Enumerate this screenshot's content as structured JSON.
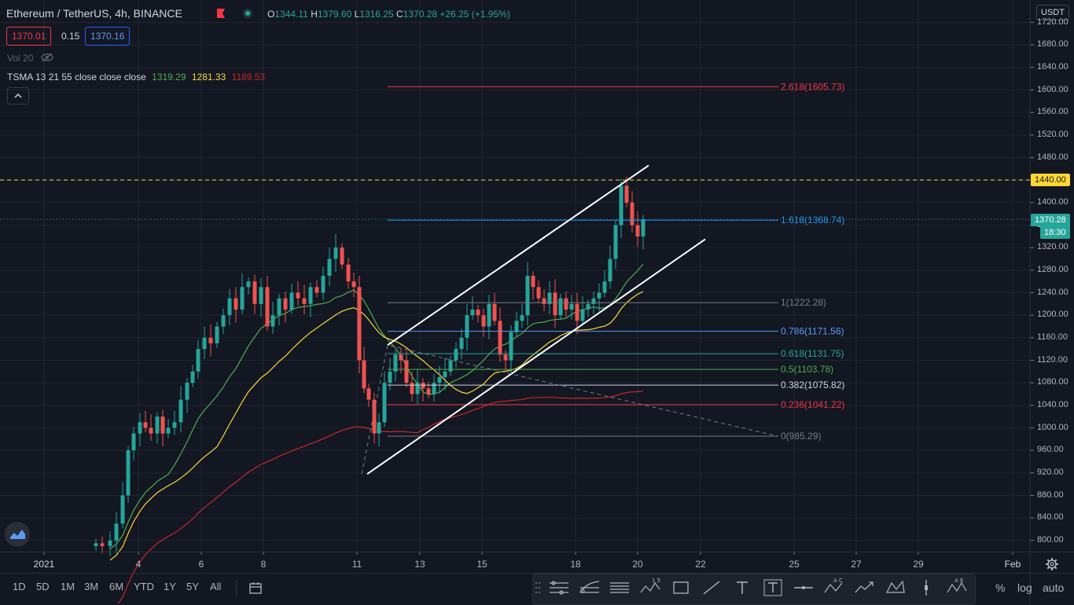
{
  "header": {
    "symbol": "Ethereum / TetherUS",
    "interval": "4h",
    "exchange": "BINANCE",
    "ohlc": {
      "o_label": "O",
      "o": "1344.11",
      "h_label": "H",
      "h": "1379.60",
      "l_label": "L",
      "l": "1316.25",
      "c_label": "C",
      "c": "1370.28",
      "change": "+26.25 (+1.95%)"
    },
    "sell_price": "1370.01",
    "spread": "0.15",
    "buy_price": "1370.16",
    "volume_label": "Vol 20",
    "tsma_label": "TSMA 13 21 55 close close close",
    "tsma_values": [
      "1319.29",
      "1281.33",
      "1189.53"
    ]
  },
  "price_scale": {
    "currency": "USDT",
    "ticks": [
      "1720.00",
      "1680.00",
      "1640.00",
      "1600.00",
      "1560.00",
      "1520.00",
      "1480.00",
      "1440.00",
      "1400.00",
      "1360.00",
      "1320.00",
      "1280.00",
      "1240.00",
      "1200.00",
      "1160.00",
      "1120.00",
      "1080.00",
      "1040.00",
      "1000.00",
      "960.00",
      "920.00",
      "880.00",
      "840.00",
      "800.00"
    ],
    "hline_label": "1440.00",
    "last_price_label": "1370.28",
    "countdown": "18:30"
  },
  "time_axis": {
    "labels": [
      "2021",
      "4",
      "6",
      "8",
      "11",
      "13",
      "15",
      "18",
      "20",
      "22",
      "25",
      "27",
      "29",
      "Feb"
    ]
  },
  "bottom_toolbar": {
    "timeframes": [
      "1D",
      "5D",
      "1M",
      "3M",
      "6M",
      "YTD",
      "1Y",
      "5Y",
      "All"
    ],
    "percent": "%",
    "log": "log",
    "auto": "auto"
  },
  "colors": {
    "background": "#131722",
    "up": "#26a69a",
    "down": "#ef5350",
    "sma13": "#4caf50",
    "sma21": "#fdd835",
    "sma55": "#c62828",
    "hline": "#fdd835",
    "last_price": "#26a69a"
  },
  "chart_data": {
    "type": "candlestick",
    "symbol": "ETH/USDT",
    "interval": "4h",
    "ylim": [
      785,
      1735
    ],
    "scale": "linear",
    "grid": true,
    "candles_approx": [
      {
        "date": "2021-01-03",
        "o": 790,
        "h": 800,
        "l": 780,
        "c": 795
      },
      {
        "date": "2021-01-04",
        "o": 800,
        "h": 1020,
        "l": 890,
        "c": 1010
      },
      {
        "date": "2021-01-05",
        "o": 1010,
        "h": 1160,
        "l": 920,
        "c": 1060
      },
      {
        "date": "2021-01-06",
        "o": 1060,
        "h": 1210,
        "l": 1080,
        "c": 1200
      },
      {
        "date": "2021-01-07",
        "o": 1200,
        "h": 1275,
        "l": 1170,
        "c": 1230
      },
      {
        "date": "2021-01-08",
        "o": 1230,
        "h": 1285,
        "l": 1130,
        "c": 1250
      },
      {
        "date": "2021-01-09",
        "o": 1250,
        "h": 1280,
        "l": 1180,
        "c": 1260
      },
      {
        "date": "2021-01-10",
        "o": 1260,
        "h": 1345,
        "l": 1200,
        "c": 1270
      },
      {
        "date": "2021-01-11",
        "o": 1270,
        "h": 1270,
        "l": 935,
        "c": 1070
      },
      {
        "date": "2021-01-12",
        "o": 1070,
        "h": 1150,
        "l": 990,
        "c": 1060
      },
      {
        "date": "2021-01-13",
        "o": 1060,
        "h": 1120,
        "l": 1020,
        "c": 1080
      },
      {
        "date": "2021-01-14",
        "o": 1080,
        "h": 1170,
        "l": 1070,
        "c": 1145
      },
      {
        "date": "2021-01-15",
        "o": 1145,
        "h": 1230,
        "l": 1120,
        "c": 1210
      },
      {
        "date": "2021-01-16",
        "o": 1210,
        "h": 1240,
        "l": 1100,
        "c": 1180
      },
      {
        "date": "2021-01-17",
        "o": 1180,
        "h": 1280,
        "l": 1170,
        "c": 1230
      },
      {
        "date": "2021-01-18",
        "o": 1230,
        "h": 1265,
        "l": 1190,
        "c": 1240
      },
      {
        "date": "2021-01-19",
        "o": 1240,
        "h": 1440,
        "l": 1220,
        "c": 1390
      },
      {
        "date": "2021-01-20",
        "o": 1390,
        "h": 1410,
        "l": 1330,
        "c": 1370.28
      }
    ],
    "moving_averages": [
      {
        "name": "SMA 13",
        "value": 1319.29
      },
      {
        "name": "SMA 21",
        "value": 1281.33
      },
      {
        "name": "SMA 55",
        "value": 1189.53
      }
    ],
    "fibonacci": [
      {
        "level": "2.618",
        "price": 1605.73
      },
      {
        "level": "1.618",
        "price": 1368.74
      },
      {
        "level": "1",
        "price": 1222.28
      },
      {
        "level": "0.786",
        "price": 1171.56
      },
      {
        "level": "0.618",
        "price": 1131.75
      },
      {
        "level": "0.5",
        "price": 1103.78
      },
      {
        "level": "0.382",
        "price": 1075.82
      },
      {
        "level": "0.236",
        "price": 1041.22
      },
      {
        "level": "0",
        "price": 985.29
      }
    ],
    "horizontal_line": 1440.0,
    "last_price": 1370.28
  }
}
